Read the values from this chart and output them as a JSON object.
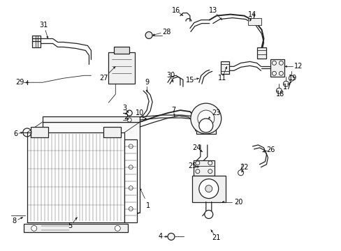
{
  "bg_color": "#ffffff",
  "line_color": "#222222",
  "label_color": "#000000",
  "fig_width": 4.89,
  "fig_height": 3.6,
  "dpi": 100
}
